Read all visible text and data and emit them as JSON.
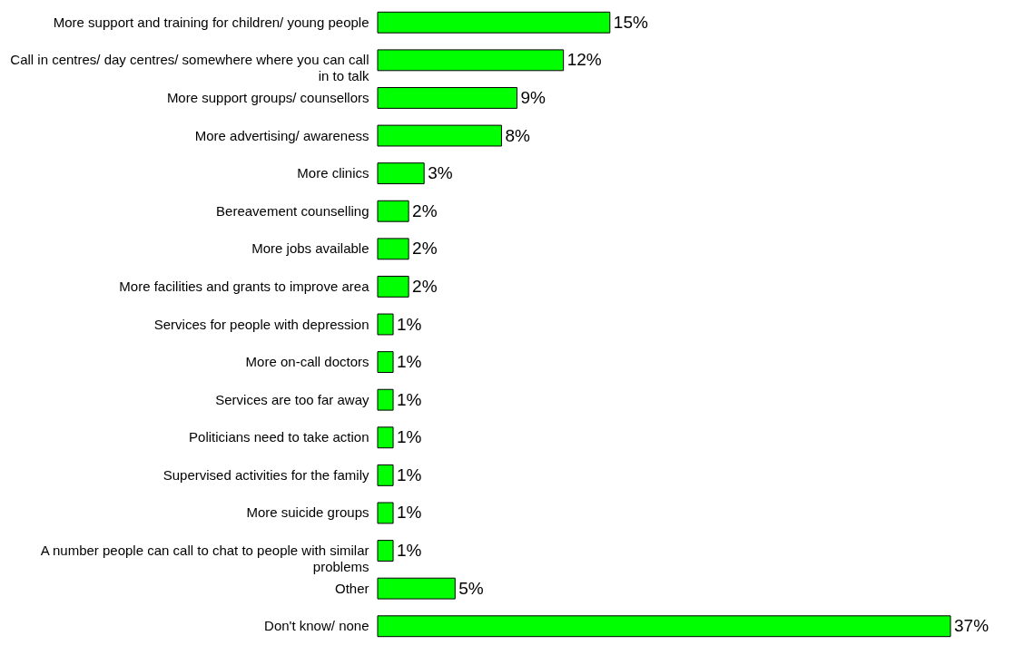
{
  "chart_data": {
    "type": "bar",
    "orientation": "horizontal",
    "categories": [
      "More support and training for children/ young people",
      "Call in centres/ day centres/ somewhere where you can call in to talk",
      "More support groups/ counsellors",
      "More advertising/ awareness",
      "More clinics",
      "Bereavement counselling",
      "More jobs available",
      "More facilities and grants to improve area",
      "Services for people with depression",
      "More on-call doctors",
      "Services are too far away",
      "Politicians need to take action",
      "Supervised activities for the family",
      "More suicide groups",
      "A number people can call to chat to people with similar problems",
      "Other",
      "Don't know/ none"
    ],
    "values": [
      15,
      12,
      9,
      8,
      3,
      2,
      2,
      2,
      1,
      1,
      1,
      1,
      1,
      1,
      1,
      5,
      37
    ],
    "value_labels": [
      "15%",
      "12%",
      "9%",
      "8%",
      "3%",
      "2%",
      "2%",
      "2%",
      "1%",
      "1%",
      "1%",
      "1%",
      "1%",
      "1%",
      "1%",
      "5%",
      "37%"
    ],
    "color": "#00ff00"
  }
}
